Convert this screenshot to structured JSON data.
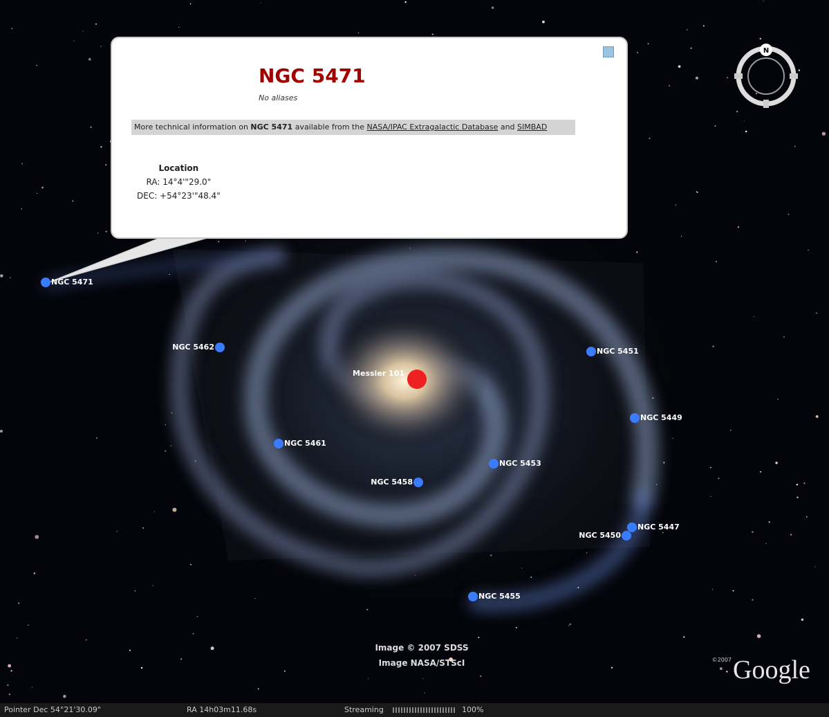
{
  "popup": {
    "title": "NGC 5471",
    "aliases": "No aliases",
    "info": {
      "prefix": "More technical information on",
      "object": "NGC 5471",
      "middle": "available from the",
      "link1": "NASA/IPAC Extragalactic Database",
      "conjunction": "and",
      "link2": "SIMBAD"
    },
    "location": {
      "heading": "Location",
      "ra": "RA: 14°4'\"29.0\"",
      "dec": "DEC: +54°23'\"48.4\""
    }
  },
  "placemarks": [
    {
      "label": "NGC 5471"
    },
    {
      "label": "NGC 5462"
    },
    {
      "label": "Messier 101"
    },
    {
      "label": "NGC 5451"
    },
    {
      "label": "NGC 5449"
    },
    {
      "label": "NGC 5461"
    },
    {
      "label": "NGC 5453"
    },
    {
      "label": "NGC 5458"
    },
    {
      "label": "NGC 5447"
    },
    {
      "label": "NGC 5450"
    },
    {
      "label": "NGC 5455"
    }
  ],
  "compass": "N",
  "attribution": [
    "Image © 2007 SDSS",
    "Image NASA/STScI"
  ],
  "logo": {
    "copyright": "©2007",
    "text": "Google"
  },
  "status_bar": {
    "pointer_dec": "Pointer Dec  54°21'30.09\"",
    "ra": "RA  14h03m11.68s",
    "streaming": "Streaming",
    "percent": "100%"
  }
}
